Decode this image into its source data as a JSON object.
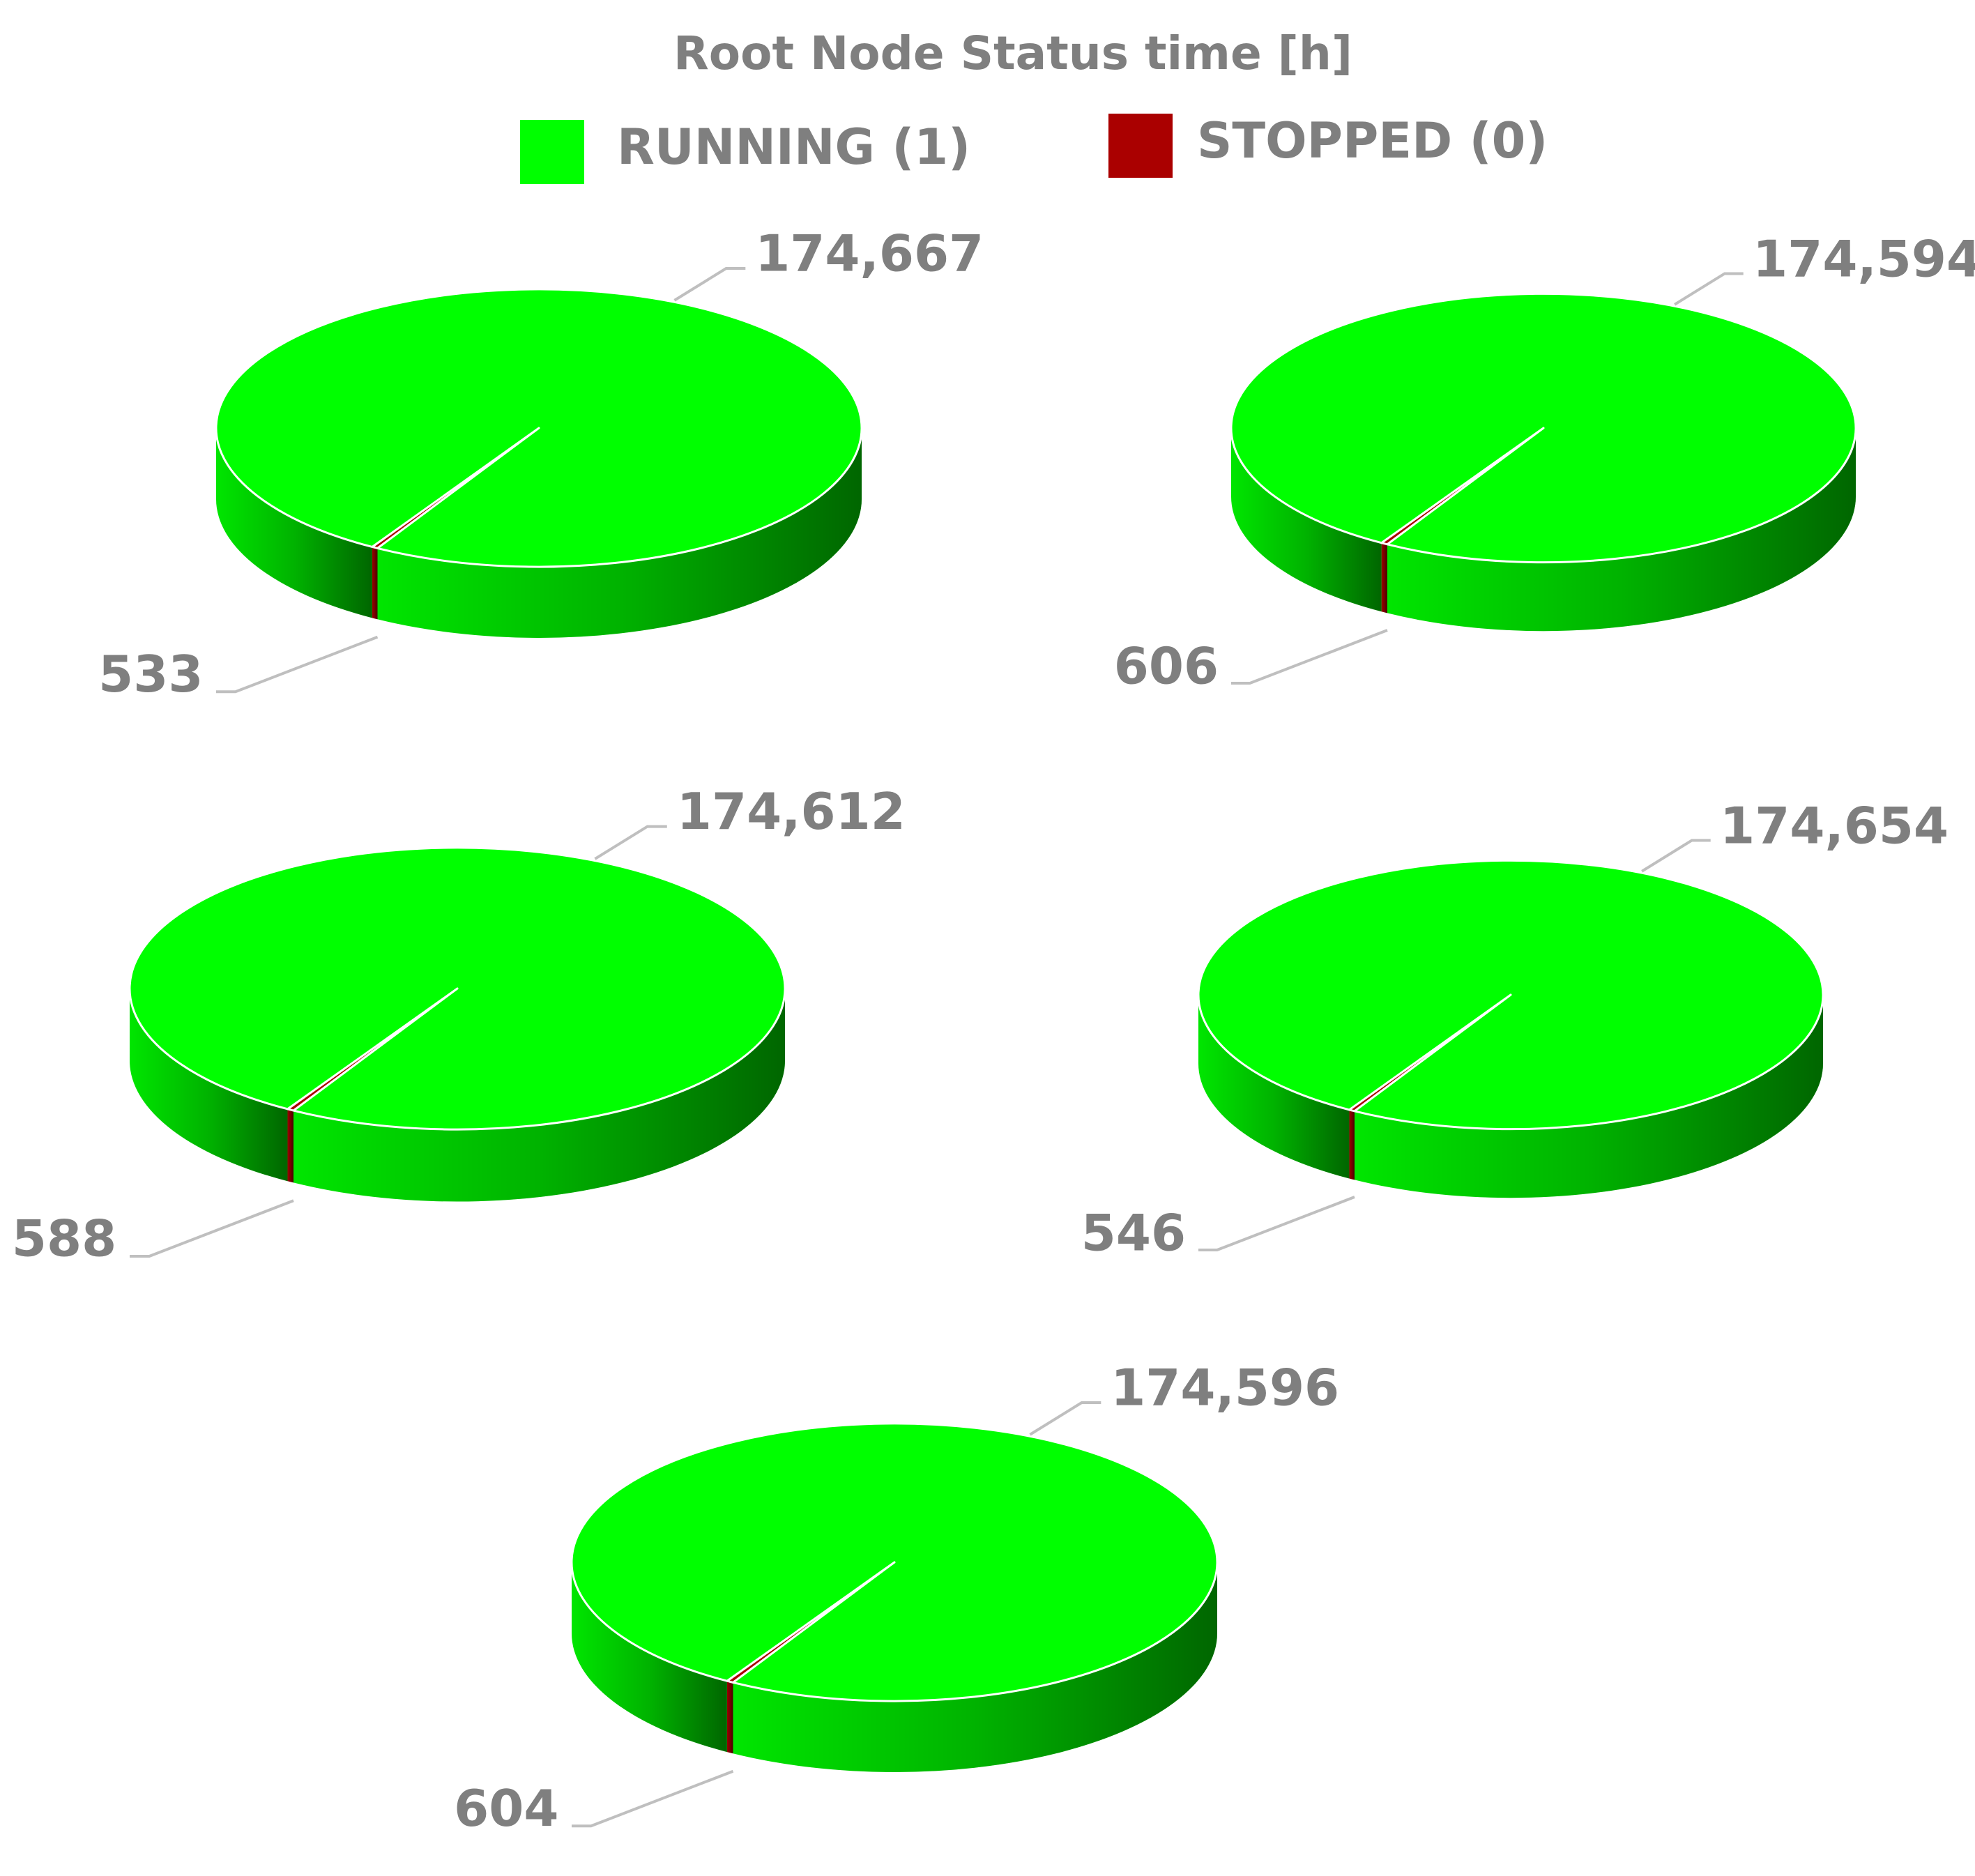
{
  "chart_data": {
    "type": "pie",
    "title": "Root Node Status time [h]",
    "series": [
      {
        "name": "RUNNING (1)",
        "color": "#00ff00",
        "values": [
          174667,
          174594,
          174612,
          174654,
          174596
        ],
        "value_labels": [
          "174,667",
          "174,594",
          "174,612",
          "174,654",
          "174,596"
        ]
      },
      {
        "name": "STOPPED (0)",
        "color": "#aa0000",
        "values": [
          533,
          606,
          588,
          546,
          604
        ]
      }
    ]
  }
}
